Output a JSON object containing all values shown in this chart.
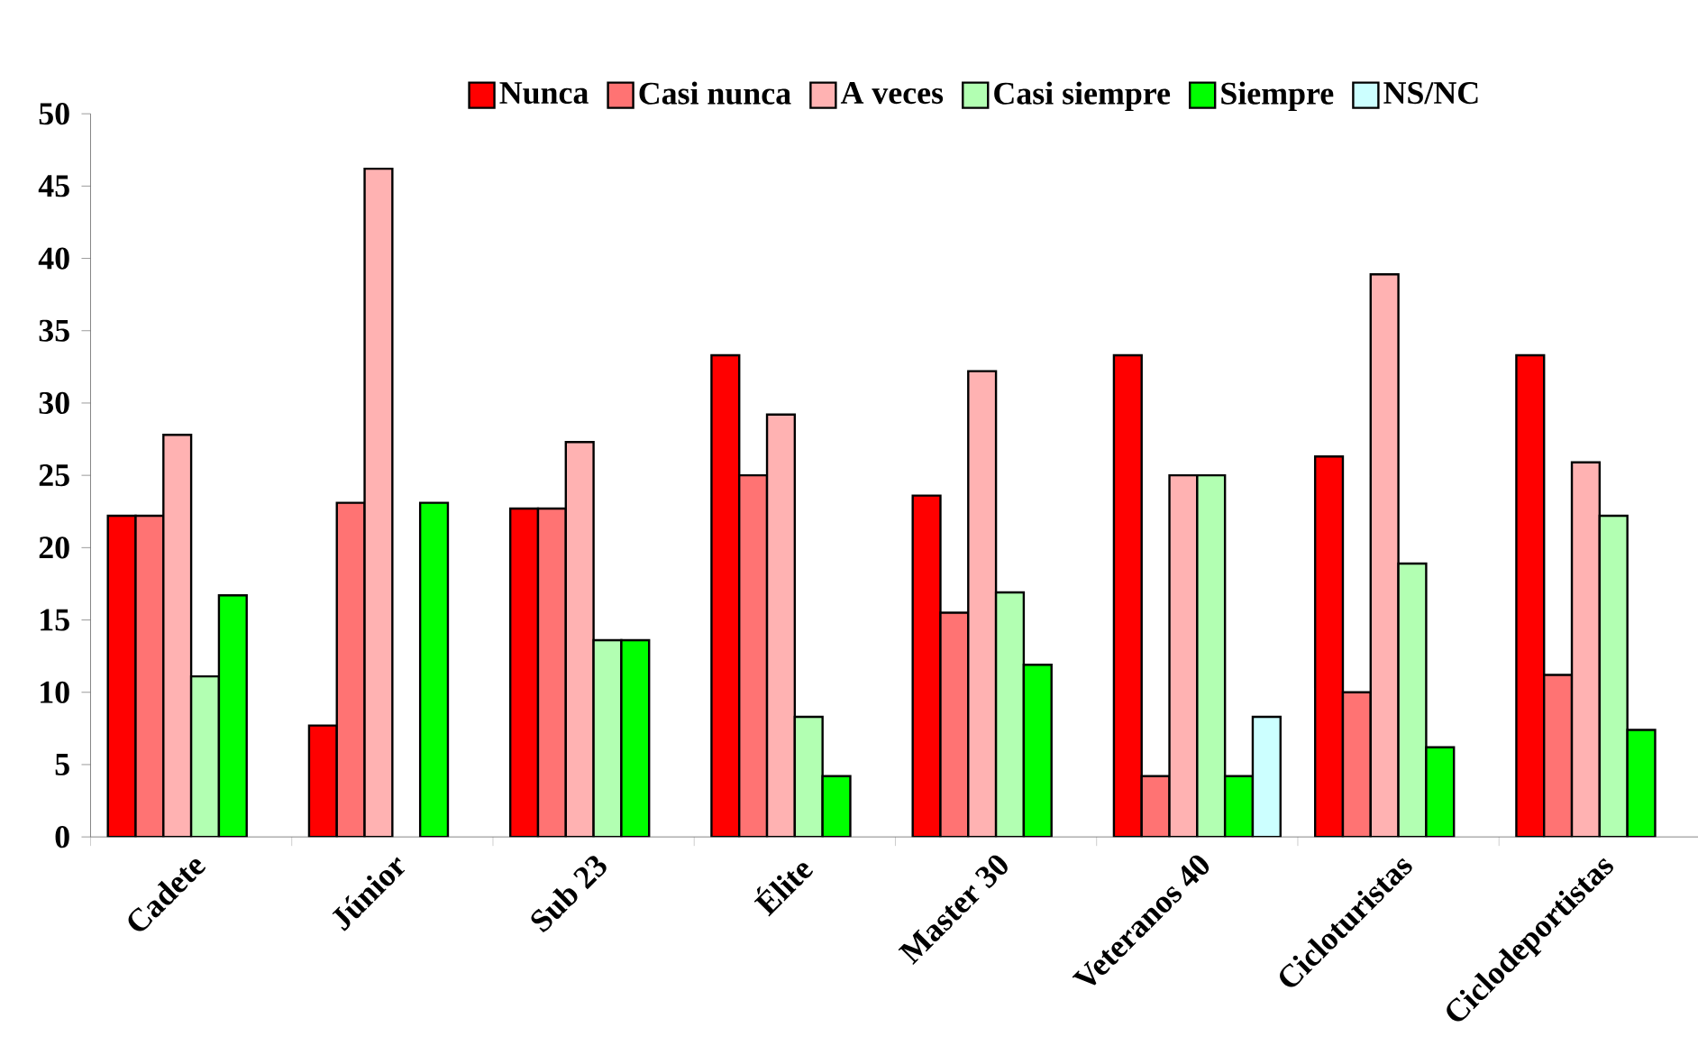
{
  "chart_data": {
    "type": "bar",
    "categories": [
      "Cadete",
      "Júnior",
      "Sub 23",
      "Élite",
      "Master 30",
      "Veteranos 40",
      "Cicloturistas",
      "Ciclodeportistas"
    ],
    "series": [
      {
        "name": "Nunca",
        "color": "#ff0000",
        "values": [
          22.2,
          7.7,
          22.7,
          33.3,
          23.6,
          33.3,
          26.3,
          33.3
        ]
      },
      {
        "name": "Casi nunca",
        "color": "#ff7373",
        "values": [
          22.2,
          23.1,
          22.7,
          25.0,
          15.5,
          4.2,
          10.0,
          11.2
        ]
      },
      {
        "name": "A veces",
        "color": "#ffb2b2",
        "values": [
          27.8,
          46.2,
          27.3,
          29.2,
          32.2,
          25.0,
          38.9,
          25.9
        ]
      },
      {
        "name": "Casi siempre",
        "color": "#b2ffb2",
        "values": [
          11.1,
          null,
          13.6,
          8.3,
          16.9,
          25.0,
          18.9,
          22.2
        ]
      },
      {
        "name": "Siempre",
        "color": "#00ff00",
        "values": [
          16.7,
          23.1,
          13.6,
          4.2,
          11.9,
          4.2,
          6.2,
          7.4
        ]
      },
      {
        "name": "NS/NC",
        "color": "#ccffff",
        "values": [
          null,
          null,
          null,
          null,
          null,
          8.3,
          null,
          null
        ]
      }
    ],
    "ylim": [
      0,
      50
    ],
    "yticks": [
      0,
      5,
      10,
      15,
      20,
      25,
      30,
      35,
      40,
      45,
      50
    ],
    "grid": false,
    "legend": "top"
  }
}
